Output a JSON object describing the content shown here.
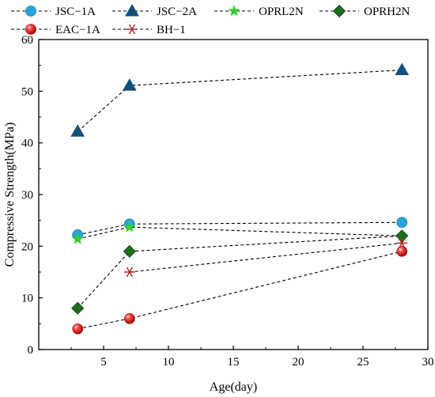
{
  "chart_data": {
    "type": "line",
    "xlabel": "Age(day)",
    "ylabel": "Compressive Strength(MPa)",
    "xlim": [
      0,
      30
    ],
    "ylim": [
      0,
      60
    ],
    "xticks": [
      5,
      10,
      15,
      20,
      25,
      30
    ],
    "yticks": [
      0,
      10,
      20,
      30,
      40,
      50,
      60
    ],
    "grid": false,
    "legend_placement": "top",
    "series": [
      {
        "name": "JSC−1A",
        "marker": "circle",
        "color": "#29a3d9",
        "x": [
          3,
          7,
          28
        ],
        "y": [
          22.2,
          24.3,
          24.6
        ]
      },
      {
        "name": "JSC−2A",
        "marker": "triangle",
        "color": "#114f7a",
        "x": [
          3,
          7,
          28
        ],
        "y": [
          42.2,
          51.1,
          54.1
        ]
      },
      {
        "name": "OPRL2N",
        "marker": "star",
        "color": "#33cc33",
        "x": [
          3,
          7,
          28
        ],
        "y": [
          21.4,
          23.7,
          22.0
        ]
      },
      {
        "name": "OPRH2N",
        "marker": "diamond",
        "color": "#1e6b1e",
        "x": [
          3,
          7,
          28
        ],
        "y": [
          8.0,
          19.0,
          22.0
        ]
      },
      {
        "name": "EAC−1A",
        "marker": "sphere",
        "color": "#e01818",
        "x": [
          3,
          7,
          28
        ],
        "y": [
          4.0,
          6.0,
          19.0
        ]
      },
      {
        "name": "BH−1",
        "marker": "asterisk",
        "color": "#b02020",
        "x": [
          7,
          28
        ],
        "y": [
          15.0,
          20.6
        ]
      }
    ]
  }
}
